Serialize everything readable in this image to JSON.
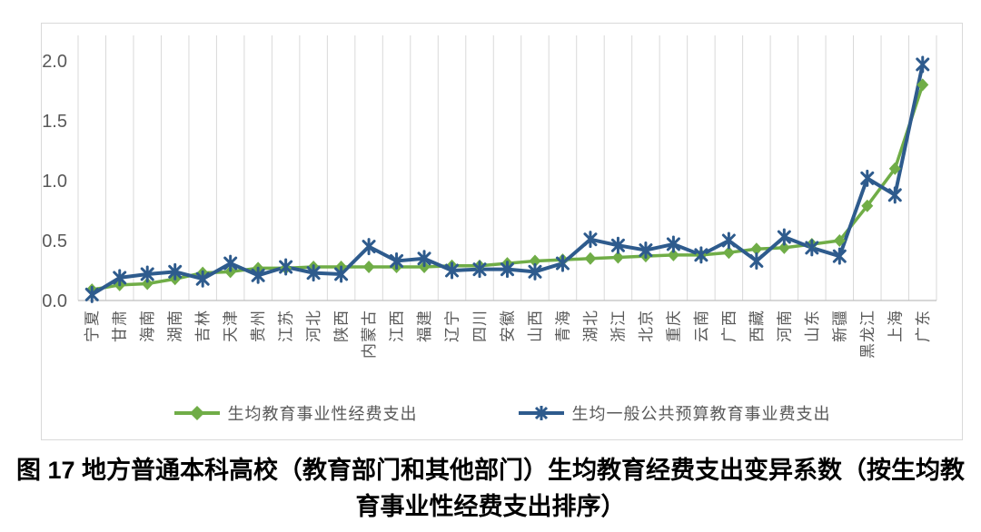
{
  "figure": {
    "caption_line1": "图 17 地方普通本科高校（教育部门和其他部门）生均教育经费支出变异系数（按生均教",
    "caption_line2": "育事业性经费支出排序）"
  },
  "chart_data": {
    "type": "line",
    "title": "",
    "xlabel": "",
    "ylabel": "",
    "ylim": [
      0,
      2.2
    ],
    "yticks": [
      0.0,
      0.5,
      1.0,
      1.5,
      2.0
    ],
    "ytick_labels": [
      "0.0",
      "0.5",
      "1.0",
      "1.5",
      "2.0"
    ],
    "grid": "vertical-only",
    "legend_position": "bottom",
    "categories": [
      "宁夏",
      "甘肃",
      "海南",
      "湖南",
      "吉林",
      "天津",
      "贵州",
      "江苏",
      "河北",
      "陕西",
      "内蒙古",
      "江西",
      "福建",
      "辽宁",
      "四川",
      "安徽",
      "山西",
      "青海",
      "湖北",
      "浙江",
      "北京",
      "重庆",
      "云南",
      "广西",
      "西藏",
      "河南",
      "山东",
      "新疆",
      "黑龙江",
      "上海",
      "广东"
    ],
    "series": [
      {
        "name": "生均教育事业性经费支出",
        "marker": "diamond",
        "color": "#70AD47",
        "values": [
          0.09,
          0.13,
          0.14,
          0.18,
          0.23,
          0.24,
          0.27,
          0.27,
          0.28,
          0.28,
          0.28,
          0.28,
          0.28,
          0.29,
          0.29,
          0.31,
          0.33,
          0.34,
          0.35,
          0.36,
          0.37,
          0.38,
          0.38,
          0.4,
          0.43,
          0.44,
          0.47,
          0.5,
          0.79,
          1.1,
          1.8
        ]
      },
      {
        "name": "生均一般公共预算教育事业费支出",
        "marker": "asterisk",
        "color": "#2E5B8D",
        "values": [
          0.05,
          0.19,
          0.22,
          0.24,
          0.18,
          0.31,
          0.21,
          0.28,
          0.23,
          0.22,
          0.45,
          0.33,
          0.35,
          0.25,
          0.26,
          0.26,
          0.24,
          0.31,
          0.51,
          0.46,
          0.42,
          0.47,
          0.38,
          0.5,
          0.33,
          0.53,
          0.44,
          0.37,
          1.02,
          0.88,
          1.97
        ]
      }
    ],
    "colors": {
      "gridline": "#D9D9D9",
      "axis_line": "#BFBFBF",
      "tick_label": "#595959",
      "frame_border": "#D9D9D9"
    }
  }
}
